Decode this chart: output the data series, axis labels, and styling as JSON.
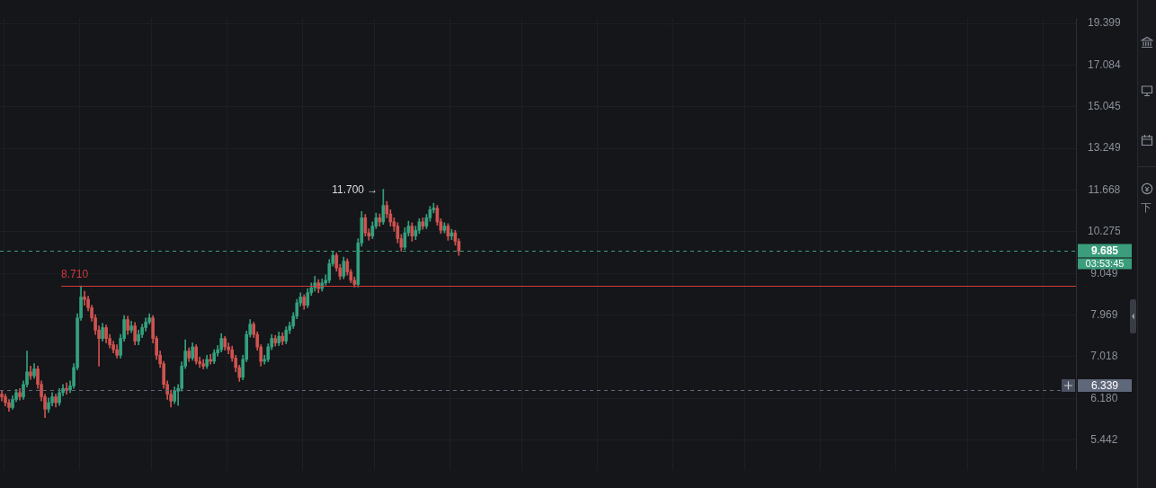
{
  "chart_data": {
    "type": "candlestick",
    "categories": [
      null,
      null,
      null,
      null,
      null,
      null,
      null,
      null,
      null,
      null,
      null,
      null,
      null,
      null,
      null,
      null,
      null,
      null,
      null,
      null,
      null,
      null,
      null,
      null,
      null,
      null,
      null,
      null,
      null,
      null,
      null,
      null,
      null,
      null,
      null,
      null,
      null,
      null,
      null,
      null,
      null,
      null,
      null,
      null,
      null,
      null,
      null,
      null,
      null,
      null,
      null,
      null,
      null,
      null,
      null,
      null,
      null,
      null,
      null,
      null,
      null,
      null,
      null,
      null,
      null,
      null,
      null,
      null,
      null,
      null,
      null,
      null,
      null,
      null,
      null,
      null,
      null,
      null,
      null,
      null,
      null,
      null,
      null,
      null,
      null,
      null,
      null,
      null,
      null,
      null,
      null,
      null,
      null,
      null,
      null,
      null,
      null,
      null,
      null,
      null,
      null,
      null,
      null,
      null,
      null,
      null,
      null,
      null,
      null,
      null,
      null,
      null,
      null,
      null,
      null,
      null,
      null,
      null,
      null,
      null,
      null,
      null,
      null,
      null,
      null,
      null,
      null,
      null,
      null,
      null,
      null,
      null,
      null,
      null,
      null,
      null,
      null,
      null,
      null,
      null,
      null,
      null,
      null,
      null,
      null,
      null,
      null,
      null,
      null,
      null,
      null,
      null,
      null,
      null,
      null,
      null,
      null,
      null,
      null,
      null,
      null,
      null,
      null,
      null,
      null,
      null,
      null,
      null,
      null,
      null,
      null,
      null,
      null,
      null,
      null,
      null,
      null,
      null,
      null,
      null,
      null,
      null,
      null,
      null,
      null,
      null,
      null,
      null,
      null,
      null,
      null,
      null,
      null,
      null,
      null,
      null,
      null,
      null,
      null,
      null,
      null,
      null,
      null,
      null,
      null,
      null,
      null,
      null,
      null,
      null,
      null,
      null,
      null,
      null,
      null,
      null,
      null,
      null,
      null,
      null,
      null,
      null,
      null,
      null,
      null,
      null,
      null,
      null,
      null,
      null,
      null,
      null,
      null,
      null,
      null,
      null,
      null,
      null,
      null,
      null,
      null,
      null,
      null,
      null,
      null,
      null,
      null,
      null,
      null,
      null,
      null,
      null,
      null,
      null,
      null,
      null,
      null,
      null,
      null,
      null,
      null,
      null,
      null,
      null,
      null,
      null,
      null,
      null,
      null,
      null,
      null,
      null,
      null,
      null,
      null,
      null,
      null,
      null,
      null,
      null,
      null,
      null,
      null,
      null,
      null,
      null,
      null,
      null,
      null,
      null,
      null,
      null,
      null,
      null,
      null,
      null,
      null,
      null,
      null
    ],
    "ohlc": [
      [
        6.26,
        6.32,
        6.13,
        6.21
      ],
      [
        6.21,
        6.26,
        6.04,
        6.1
      ],
      [
        6.1,
        6.16,
        5.94,
        6.01
      ],
      [
        6.01,
        6.23,
        5.98,
        6.16
      ],
      [
        6.16,
        6.35,
        6.12,
        6.29
      ],
      [
        6.29,
        6.37,
        6.15,
        6.21
      ],
      [
        6.21,
        6.52,
        6.16,
        6.45
      ],
      [
        6.45,
        7.14,
        6.4,
        6.7
      ],
      [
        6.7,
        6.82,
        6.55,
        6.62
      ],
      [
        6.62,
        6.87,
        6.57,
        6.76
      ],
      [
        6.76,
        6.82,
        6.37,
        6.45
      ],
      [
        6.45,
        6.52,
        6.13,
        6.21
      ],
      [
        6.21,
        6.26,
        5.83,
        5.98
      ],
      [
        5.98,
        6.19,
        5.92,
        6.1
      ],
      [
        6.1,
        6.29,
        6.04,
        6.21
      ],
      [
        6.21,
        6.26,
        6.02,
        6.1
      ],
      [
        6.1,
        6.37,
        6.05,
        6.29
      ],
      [
        6.29,
        6.45,
        6.23,
        6.37
      ],
      [
        6.37,
        6.48,
        6.26,
        6.34
      ],
      [
        6.34,
        6.52,
        6.29,
        6.42
      ],
      [
        6.42,
        6.87,
        6.37,
        6.79
      ],
      [
        6.79,
        8.0,
        6.74,
        7.9
      ],
      [
        7.9,
        8.71,
        7.84,
        8.42
      ],
      [
        8.42,
        8.57,
        8.21,
        8.36
      ],
      [
        8.36,
        8.44,
        8.07,
        8.15
      ],
      [
        8.15,
        8.21,
        7.82,
        7.9
      ],
      [
        7.9,
        7.98,
        7.51,
        7.61
      ],
      [
        7.61,
        7.71,
        6.82,
        7.42
      ],
      [
        7.42,
        7.77,
        7.36,
        7.67
      ],
      [
        7.67,
        7.73,
        7.32,
        7.42
      ],
      [
        7.42,
        7.51,
        7.21,
        7.28
      ],
      [
        7.28,
        7.36,
        7.1,
        7.17
      ],
      [
        7.17,
        7.28,
        6.99,
        7.05
      ],
      [
        7.05,
        7.51,
        6.99,
        7.42
      ],
      [
        7.42,
        7.96,
        7.36,
        7.86
      ],
      [
        7.86,
        7.94,
        7.51,
        7.61
      ],
      [
        7.61,
        7.82,
        7.55,
        7.71
      ],
      [
        7.71,
        7.79,
        7.28,
        7.36
      ],
      [
        7.36,
        7.61,
        7.28,
        7.51
      ],
      [
        7.51,
        7.75,
        7.44,
        7.67
      ],
      [
        7.67,
        7.9,
        7.59,
        7.8
      ],
      [
        7.8,
        8.0,
        7.75,
        7.9
      ],
      [
        7.9,
        7.96,
        7.32,
        7.42
      ],
      [
        7.42,
        7.47,
        6.96,
        7.05
      ],
      [
        7.05,
        7.14,
        6.79,
        6.87
      ],
      [
        6.87,
        6.92,
        6.37,
        6.45
      ],
      [
        6.45,
        6.52,
        6.16,
        6.26
      ],
      [
        6.26,
        6.34,
        6.02,
        6.13
      ],
      [
        6.13,
        6.4,
        6.08,
        6.32
      ],
      [
        6.32,
        6.45,
        6.05,
        6.37
      ],
      [
        6.37,
        6.91,
        6.32,
        6.82
      ],
      [
        6.82,
        7.39,
        6.77,
        7.14
      ],
      [
        7.14,
        7.21,
        6.92,
        6.99
      ],
      [
        6.99,
        7.32,
        6.94,
        7.23
      ],
      [
        7.23,
        7.28,
        6.86,
        6.92
      ],
      [
        6.92,
        7.01,
        6.79,
        6.87
      ],
      [
        6.87,
        6.96,
        6.76,
        6.82
      ],
      [
        6.82,
        7.05,
        6.77,
        6.96
      ],
      [
        6.96,
        7.07,
        6.86,
        6.92
      ],
      [
        6.92,
        7.17,
        6.87,
        7.1
      ],
      [
        7.1,
        7.26,
        7.03,
        7.17
      ],
      [
        7.17,
        7.53,
        7.12,
        7.42
      ],
      [
        7.42,
        7.47,
        7.16,
        7.23
      ],
      [
        7.23,
        7.32,
        7.08,
        7.17
      ],
      [
        7.17,
        7.25,
        6.92,
        6.99
      ],
      [
        6.99,
        7.05,
        6.7,
        6.79
      ],
      [
        6.79,
        6.84,
        6.51,
        6.59
      ],
      [
        6.59,
        7.05,
        6.54,
        6.96
      ],
      [
        6.96,
        7.59,
        6.91,
        7.51
      ],
      [
        7.51,
        7.86,
        7.45,
        7.75
      ],
      [
        7.75,
        7.8,
        7.44,
        7.51
      ],
      [
        7.51,
        7.57,
        7.16,
        7.23
      ],
      [
        7.23,
        7.28,
        6.82,
        6.92
      ],
      [
        6.92,
        7.05,
        6.86,
        6.96
      ],
      [
        6.96,
        7.3,
        6.91,
        7.23
      ],
      [
        7.23,
        7.51,
        7.17,
        7.42
      ],
      [
        7.42,
        7.49,
        7.25,
        7.32
      ],
      [
        7.32,
        7.57,
        7.26,
        7.47
      ],
      [
        7.47,
        7.55,
        7.28,
        7.36
      ],
      [
        7.36,
        7.69,
        7.3,
        7.61
      ],
      [
        7.61,
        7.8,
        7.53,
        7.71
      ],
      [
        7.71,
        8.03,
        7.65,
        7.94
      ],
      [
        7.94,
        8.36,
        7.88,
        8.27
      ],
      [
        8.27,
        8.53,
        8.19,
        8.42
      ],
      [
        8.42,
        8.48,
        8.11,
        8.21
      ],
      [
        8.21,
        8.64,
        8.15,
        8.53
      ],
      [
        8.53,
        8.79,
        8.46,
        8.66
      ],
      [
        8.66,
        8.97,
        8.57,
        8.79
      ],
      [
        8.79,
        8.88,
        8.53,
        8.64
      ],
      [
        8.64,
        8.9,
        8.57,
        8.79
      ],
      [
        8.79,
        9.01,
        8.73,
        8.86
      ],
      [
        8.86,
        9.44,
        8.79,
        9.32
      ],
      [
        9.32,
        9.68,
        9.25,
        9.56
      ],
      [
        9.56,
        9.63,
        9.11,
        9.2
      ],
      [
        9.2,
        9.3,
        8.88,
        8.97
      ],
      [
        8.97,
        9.51,
        8.9,
        9.39
      ],
      [
        9.39,
        9.46,
        9.0,
        9.09
      ],
      [
        9.09,
        9.16,
        8.79,
        8.86
      ],
      [
        8.86,
        8.95,
        8.68,
        8.75
      ],
      [
        8.75,
        10.06,
        8.68,
        9.93
      ],
      [
        9.93,
        10.93,
        9.83,
        10.72
      ],
      [
        10.72,
        10.83,
        10.14,
        10.24
      ],
      [
        10.24,
        10.37,
        10.01,
        10.14
      ],
      [
        10.14,
        10.59,
        10.06,
        10.45
      ],
      [
        10.45,
        10.88,
        10.37,
        10.72
      ],
      [
        10.72,
        10.85,
        10.45,
        10.59
      ],
      [
        10.59,
        11.7,
        10.51,
        11.13
      ],
      [
        11.13,
        11.27,
        10.72,
        10.85
      ],
      [
        10.85,
        10.99,
        10.45,
        10.59
      ],
      [
        10.59,
        10.72,
        10.29,
        10.45
      ],
      [
        10.45,
        10.56,
        9.93,
        10.06
      ],
      [
        10.06,
        10.19,
        9.68,
        9.8
      ],
      [
        9.8,
        10.4,
        9.73,
        10.24
      ],
      [
        10.24,
        10.61,
        10.14,
        10.45
      ],
      [
        10.45,
        10.56,
        9.98,
        10.14
      ],
      [
        10.14,
        10.45,
        10.03,
        10.32
      ],
      [
        10.32,
        10.69,
        10.22,
        10.59
      ],
      [
        10.59,
        10.72,
        10.35,
        10.45
      ],
      [
        10.45,
        10.83,
        10.37,
        10.72
      ],
      [
        10.72,
        11.1,
        10.61,
        10.99
      ],
      [
        10.99,
        11.21,
        10.88,
        11.04
      ],
      [
        11.04,
        11.13,
        10.48,
        10.59
      ],
      [
        10.59,
        10.69,
        10.22,
        10.32
      ],
      [
        10.32,
        10.56,
        10.24,
        10.45
      ],
      [
        10.45,
        10.53,
        10.01,
        10.14
      ],
      [
        10.14,
        10.35,
        10.03,
        10.24
      ],
      [
        10.24,
        10.32,
        9.86,
        9.98
      ],
      [
        9.98,
        10.06,
        9.56,
        9.685
      ],
      null,
      null,
      null,
      null,
      null,
      null,
      null,
      null,
      null,
      null,
      null,
      null,
      null,
      null,
      null,
      null,
      null,
      null,
      null,
      null,
      null,
      null,
      null,
      null,
      null,
      null,
      null,
      null,
      null,
      null,
      null,
      null,
      null,
      null,
      null,
      null,
      null,
      null,
      null,
      null,
      null,
      null,
      null,
      null,
      null,
      null,
      null,
      null,
      null,
      null,
      null,
      null,
      null,
      null,
      null,
      null,
      null,
      null,
      null,
      null,
      null,
      null,
      null,
      null,
      null,
      null,
      null,
      null,
      null,
      null,
      null,
      null,
      null,
      null,
      null,
      null,
      null,
      null,
      null,
      null,
      null,
      null,
      null,
      null,
      null,
      null,
      null,
      null,
      null,
      null,
      null,
      null,
      null,
      null,
      null,
      null,
      null,
      null,
      null,
      null,
      null,
      null,
      null,
      null,
      null,
      null,
      null,
      null,
      null,
      null,
      null,
      null,
      null,
      null,
      null,
      null,
      null,
      null,
      null,
      null,
      null,
      null,
      null,
      null,
      null,
      null,
      null,
      null,
      null,
      null,
      null,
      null,
      null,
      null,
      null,
      null,
      null,
      null,
      null,
      null,
      null,
      null,
      null,
      null,
      null,
      null,
      null,
      null,
      null,
      null,
      null,
      null,
      null,
      null,
      null,
      null,
      null,
      null,
      null,
      null,
      null,
      null,
      null,
      null,
      null,
      null,
      null,
      null,
      null,
      null,
      null
    ],
    "colors": [
      "#cf5350",
      "#cf5350",
      "#cf5350",
      "#34a07d",
      "#34a07d",
      "#cf5350",
      "#34a07d",
      "#34a07d",
      "#cf5350",
      "#34a07d",
      "#cf5350",
      "#cf5350",
      "#cf5350",
      "#34a07d",
      "#34a07d",
      "#cf5350",
      "#34a07d",
      "#34a07d",
      "#cf5350",
      "#34a07d",
      "#34a07d",
      "#34a07d",
      "#34a07d",
      "#cf5350",
      "#cf5350",
      "#cf5350",
      "#cf5350",
      "#cf5350",
      "#34a07d",
      "#cf5350",
      "#cf5350",
      "#cf5350",
      "#cf5350",
      "#34a07d",
      "#34a07d",
      "#cf5350",
      "#34a07d",
      "#cf5350",
      "#34a07d",
      "#34a07d",
      "#34a07d",
      "#34a07d",
      "#cf5350",
      "#cf5350",
      "#cf5350",
      "#cf5350",
      "#cf5350",
      "#cf5350",
      "#34a07d",
      "#34a07d",
      "#34a07d",
      "#34a07d",
      "#cf5350",
      "#34a07d",
      "#cf5350",
      "#cf5350",
      "#cf5350",
      "#34a07d",
      "#cf5350",
      "#34a07d",
      "#34a07d",
      "#34a07d",
      "#cf5350",
      "#cf5350",
      "#cf5350",
      "#cf5350",
      "#cf5350",
      "#34a07d",
      "#34a07d",
      "#34a07d",
      "#cf5350",
      "#cf5350",
      "#cf5350",
      "#34a07d",
      "#34a07d",
      "#34a07d",
      "#cf5350",
      "#34a07d",
      "#cf5350",
      "#34a07d",
      "#34a07d",
      "#34a07d",
      "#34a07d",
      "#34a07d",
      "#cf5350",
      "#34a07d",
      "#34a07d",
      "#34a07d",
      "#cf5350",
      "#34a07d",
      "#34a07d",
      "#34a07d",
      "#34a07d",
      "#cf5350",
      "#cf5350",
      "#34a07d",
      "#cf5350",
      "#cf5350",
      "#cf5350",
      "#34a07d",
      "#34a07d",
      "#cf5350",
      "#cf5350",
      "#34a07d",
      "#34a07d",
      "#cf5350",
      "#34a07d",
      "#cf5350",
      "#cf5350",
      "#cf5350",
      "#cf5350",
      "#cf5350",
      "#34a07d",
      "#34a07d",
      "#cf5350",
      "#34a07d",
      "#34a07d",
      "#cf5350",
      "#34a07d",
      "#34a07d",
      "#34a07d",
      "#cf5350",
      "#cf5350",
      "#34a07d",
      "#cf5350",
      "#34a07d",
      "#cf5350",
      "#cf5350",
      null,
      null,
      null,
      null,
      null,
      null,
      null,
      null,
      null,
      null,
      null,
      null,
      null,
      null,
      null,
      null,
      null,
      null,
      null,
      null,
      null,
      null,
      null,
      null,
      null,
      null,
      null,
      null,
      null,
      null,
      null,
      null,
      null,
      null,
      null,
      null,
      null,
      null,
      null,
      null,
      null,
      null,
      null,
      null,
      null,
      null,
      null,
      null,
      null,
      null,
      null,
      null,
      null,
      null,
      null,
      null,
      null,
      null,
      null,
      null,
      null,
      null,
      null,
      null,
      null,
      null,
      null,
      null,
      null,
      null,
      null,
      null,
      null,
      null,
      null,
      null,
      null,
      null,
      null,
      null,
      null,
      null,
      null,
      null,
      null,
      null,
      null,
      null,
      null,
      null,
      null,
      null,
      null,
      null,
      null,
      null,
      null,
      null,
      null,
      null,
      null,
      null,
      null,
      null,
      null,
      null,
      null,
      null,
      null,
      null,
      null,
      null,
      null,
      null,
      null,
      null,
      null,
      null,
      null,
      null,
      null,
      null,
      null,
      null,
      null,
      null,
      null,
      null,
      null,
      null,
      null,
      null,
      null,
      null,
      null,
      null,
      null,
      null,
      null,
      null,
      null,
      null,
      null,
      null,
      null,
      null,
      null,
      null,
      null,
      null,
      null,
      null,
      null,
      null,
      null,
      null,
      null,
      null,
      null,
      null,
      null,
      null,
      null,
      null,
      null,
      null,
      null,
      null,
      null,
      null,
      null
    ],
    "log": true,
    "ylim": [
      4.97,
      19.71
    ],
    "yticks": [
      5.442,
      {
        "value": 6.18,
        "label": "6.180"
      },
      7.018,
      7.969,
      9.049,
      10.275,
      11.668,
      13.249,
      15.045,
      17.084,
      19.399
    ],
    "grid": true,
    "tick_labels": "y",
    "ref_lines": [
      {
        "axis": "y",
        "value": 8.71,
        "label": "8.710",
        "color": "#d23a3d",
        "line_style": "solid"
      },
      {
        "axis": "y",
        "value": 9.685,
        "label": "9.685",
        "color": "#3b9d7b",
        "line_style": "dashed"
      },
      {
        "axis": "y",
        "value": 6.339,
        "label": "6.339",
        "color": "#5f677a",
        "line_style": "dashed"
      }
    ],
    "annotations": [
      "11.700 →",
      "03:53:45",
      "下"
    ]
  }
}
